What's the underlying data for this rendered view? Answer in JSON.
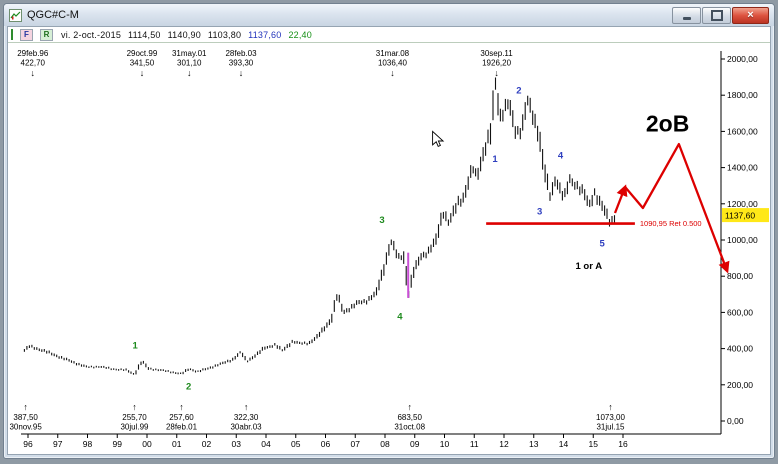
{
  "window": {
    "title": "QGC#C-M",
    "close_glyph": "×"
  },
  "toolbar": {
    "btn_f": "F",
    "btn_r": "R",
    "date": "vi. 2-oct.-2015",
    "open": "1114,50",
    "high": "1140,90",
    "low": "1103,80",
    "last": "1137,60",
    "change": "22,40"
  },
  "chart_data": {
    "type": "bar",
    "instrument": "QGC#C-M",
    "timeframe": "monthly",
    "xlim": [
      1995.7,
      2019.6
    ],
    "ylim": [
      0,
      2100
    ],
    "x_ticks": [
      "96",
      "97",
      "98",
      "99",
      "00",
      "01",
      "02",
      "03",
      "04",
      "05",
      "06",
      "07",
      "08",
      "09",
      "10",
      "11",
      "12",
      "13",
      "14",
      "15",
      "16"
    ],
    "y_ticks": [
      {
        "v": 2000,
        "label": "2000,00"
      },
      {
        "v": 1800,
        "label": "1800,00"
      },
      {
        "v": 1600,
        "label": "1600,00"
      },
      {
        "v": 1400,
        "label": "1400,00"
      },
      {
        "v": 1200,
        "label": "1200,00"
      },
      {
        "v": 1000,
        "label": "1000,00"
      },
      {
        "v": 800,
        "label": "800,00"
      },
      {
        "v": 600,
        "label": "600,00"
      },
      {
        "v": 400,
        "label": "400,00"
      },
      {
        "v": 200,
        "label": "200,00"
      },
      {
        "v": 0,
        "label": "0,00"
      }
    ],
    "symbols": {
      "arrow_up": "↑",
      "arrow_down": "↓"
    },
    "colors": {
      "bars": "#111111",
      "red": "#dd0000",
      "wave_green": "#1e8a1e",
      "wave_blue": "#2f3fbf",
      "tag_bg": "#ffe818",
      "magenta": "#c94fd6"
    },
    "series_keypoints": [
      [
        1995.88,
        390
      ],
      [
        1996.05,
        412
      ],
      [
        1996.2,
        405
      ],
      [
        1996.5,
        390
      ],
      [
        1997,
        358
      ],
      [
        1997.5,
        326
      ],
      [
        1998,
        297
      ],
      [
        1998.4,
        301
      ],
      [
        1998.8,
        288
      ],
      [
        1999.3,
        281
      ],
      [
        1999.58,
        258
      ],
      [
        1999.83,
        330
      ],
      [
        2000.05,
        290
      ],
      [
        2000.45,
        281
      ],
      [
        2000.85,
        270
      ],
      [
        2001.16,
        260
      ],
      [
        2001.42,
        289
      ],
      [
        2001.7,
        272
      ],
      [
        2002,
        288
      ],
      [
        2002.5,
        316
      ],
      [
        2002.9,
        342
      ],
      [
        2003.16,
        380
      ],
      [
        2003.35,
        330
      ],
      [
        2003.7,
        368
      ],
      [
        2003.95,
        404
      ],
      [
        2004.3,
        420
      ],
      [
        2004.55,
        390
      ],
      [
        2004.9,
        440
      ],
      [
        2005.1,
        428
      ],
      [
        2005.45,
        432
      ],
      [
        2005.7,
        460
      ],
      [
        2005.95,
        512
      ],
      [
        2006.2,
        562
      ],
      [
        2006.4,
        698
      ],
      [
        2006.6,
        603
      ],
      [
        2006.85,
        624
      ],
      [
        2007.1,
        654
      ],
      [
        2007.4,
        666
      ],
      [
        2007.7,
        703
      ],
      [
        2007.95,
        838
      ],
      [
        2008.2,
        992
      ],
      [
        2008.45,
        902
      ],
      [
        2008.62,
        918
      ],
      [
        2008.8,
        700
      ],
      [
        2008.95,
        818
      ],
      [
        2009.2,
        912
      ],
      [
        2009.45,
        932
      ],
      [
        2009.7,
        992
      ],
      [
        2009.95,
        1158
      ],
      [
        2010.15,
        1092
      ],
      [
        2010.45,
        1208
      ],
      [
        2010.65,
        1238
      ],
      [
        2010.95,
        1398
      ],
      [
        2011.08,
        1348
      ],
      [
        2011.3,
        1478
      ],
      [
        2011.55,
        1592
      ],
      [
        2011.72,
        1878
      ],
      [
        2011.85,
        1682
      ],
      [
        2012,
        1718
      ],
      [
        2012.15,
        1758
      ],
      [
        2012.4,
        1592
      ],
      [
        2012.6,
        1618
      ],
      [
        2012.78,
        1772
      ],
      [
        2013,
        1668
      ],
      [
        2013.18,
        1585
      ],
      [
        2013.32,
        1420
      ],
      [
        2013.47,
        1298
      ],
      [
        2013.57,
        1228
      ],
      [
        2013.72,
        1338
      ],
      [
        2013.9,
        1282
      ],
      [
        2014.02,
        1232
      ],
      [
        2014.2,
        1328
      ],
      [
        2014.5,
        1298
      ],
      [
        2014.7,
        1258
      ],
      [
        2014.85,
        1182
      ],
      [
        2015.05,
        1262
      ],
      [
        2015.3,
        1188
      ],
      [
        2015.58,
        1090
      ],
      [
        2015.75,
        1138
      ]
    ],
    "top_markers": [
      {
        "date": "29feb.96",
        "price": "422,70",
        "t": 1996.16
      },
      {
        "date": "29oct.99",
        "price": "341,50",
        "t": 1999.83
      },
      {
        "date": "31may.01",
        "price": "301,10",
        "t": 2001.42
      },
      {
        "date": "28feb.03",
        "price": "393,30",
        "t": 2003.16
      },
      {
        "date": "31mar.08",
        "price": "1036,40",
        "t": 2008.25
      },
      {
        "date": "30sep.11",
        "price": "1926,20",
        "t": 2011.75
      }
    ],
    "bottom_markers": [
      {
        "price": "387,50",
        "date": "30nov.95",
        "t": 1995.92
      },
      {
        "price": "255,70",
        "date": "30jul.99",
        "t": 1999.58
      },
      {
        "price": "257,60",
        "date": "28feb.01",
        "t": 2001.16
      },
      {
        "price": "322,30",
        "date": "30abr.03",
        "t": 2003.33
      },
      {
        "price": "683,50",
        "date": "31oct.08",
        "t": 2008.83
      },
      {
        "price": "1073,00",
        "date": "31jul.15",
        "t": 2015.58
      }
    ],
    "waves_green": [
      {
        "label": "1",
        "t": 1999.6,
        "p": 400
      },
      {
        "label": "2",
        "t": 2001.4,
        "p": 175
      },
      {
        "label": "3",
        "t": 2007.9,
        "p": 1095
      },
      {
        "label": "4",
        "t": 2008.5,
        "p": 560
      }
    ],
    "waves_blue": [
      {
        "label": "1",
        "t": 2011.7,
        "p": 1430
      },
      {
        "label": "2",
        "t": 2012.5,
        "p": 1810
      },
      {
        "label": "3",
        "t": 2013.2,
        "p": 1140
      },
      {
        "label": "4",
        "t": 2013.9,
        "p": 1450
      },
      {
        "label": "5",
        "t": 2015.3,
        "p": 965
      }
    ],
    "notes": [
      {
        "label": "1 or A",
        "t": 2014.85,
        "p": 840,
        "size": 9.5
      },
      {
        "label": "2oB",
        "t": 2017.5,
        "p": 1600,
        "size": 23
      }
    ],
    "retracement": {
      "value": 1090.95,
      "label": "1090,95 Ret 0.500",
      "t1": 2011.4,
      "t2": 2016.4
    },
    "projection": [
      [
        2015.73,
        1149
      ],
      [
        2016.07,
        1293
      ],
      [
        2016.67,
        1177
      ],
      [
        2017.88,
        1530
      ],
      [
        2019.5,
        830
      ]
    ],
    "highlight_bar": {
      "t": 2008.78,
      "high": 930,
      "low": 680
    },
    "last_price": {
      "value": 1137.6,
      "label": "1137,60"
    },
    "cursor": {
      "t": 2009.6,
      "p": 1600
    }
  }
}
